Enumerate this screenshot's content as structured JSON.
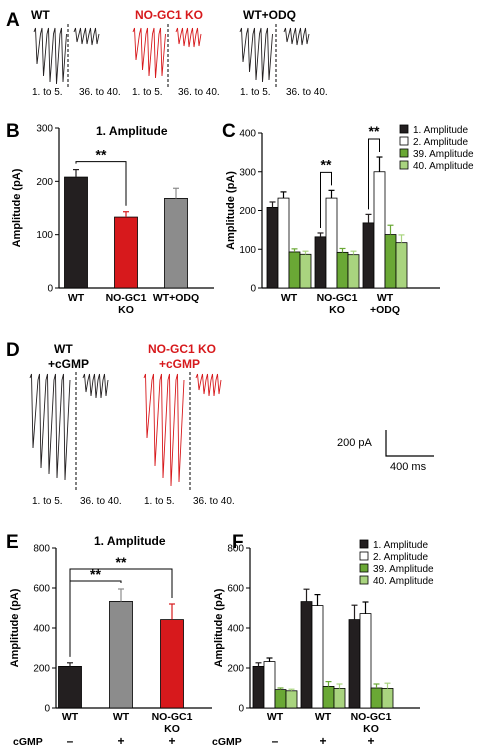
{
  "colors": {
    "wt": "#231f20",
    "ko": "#d7191c",
    "odq": "#8c8c8c",
    "amp2": "#ffffff",
    "amp39": "#6aa835",
    "amp40": "#a9d47f"
  },
  "panel_letters": [
    "A",
    "B",
    "C",
    "D",
    "E",
    "F"
  ],
  "traces": {
    "A": {
      "groups": [
        {
          "label": "WT",
          "color": "#231f20",
          "first": "1. to 5.",
          "last": "36. to 40."
        },
        {
          "label": "NO-GC1 KO",
          "color": "#d7191c",
          "first": "1. to 5.",
          "last": "36. to 40."
        },
        {
          "label": "WT+ODQ",
          "color": "#231f20",
          "first": "1. to 5.",
          "last": "36. to 40."
        }
      ]
    },
    "D": {
      "groups": [
        {
          "label_lines": [
            "WT",
            "+cGMP"
          ],
          "color": "#231f20",
          "first": "1. to 5.",
          "last": "36. to 40."
        },
        {
          "label_lines": [
            "NO-GC1 KO",
            "+cGMP"
          ],
          "color": "#d7191c",
          "first": "1. to 5.",
          "last": "36. to 40."
        }
      ],
      "scalebar": {
        "y_label": "200 pA",
        "x_label": "400 ms"
      }
    }
  },
  "chart_data": [
    {
      "panel": "B",
      "type": "bar",
      "title": "1. Amplitude",
      "ylabel": "Amplitude (pA)",
      "ylim": [
        0,
        300
      ],
      "yticks": [
        0,
        100,
        200,
        300
      ],
      "categories": [
        [
          "WT"
        ],
        [
          "NO-GC1",
          "KO"
        ],
        [
          "WT+ODQ"
        ]
      ],
      "values": [
        208,
        133,
        168
      ],
      "errors": [
        14,
        10,
        19
      ],
      "colors": [
        "#231f20",
        "#d7191c",
        "#8c8c8c"
      ],
      "significance": [
        {
          "from": 0,
          "to": 1,
          "label": "**"
        }
      ]
    },
    {
      "panel": "C",
      "type": "bar",
      "ylabel": "Amplitude (pA)",
      "ylim": [
        0,
        400
      ],
      "yticks": [
        0,
        100,
        200,
        300,
        400
      ],
      "categories": [
        [
          "WT"
        ],
        [
          "NO-GC1",
          "KO"
        ],
        [
          "WT",
          "+ODQ"
        ]
      ],
      "series": [
        {
          "name": "1. Amplitude",
          "color": "#231f20",
          "values": [
            208,
            132,
            168
          ],
          "errors": [
            14,
            10,
            22
          ]
        },
        {
          "name": "2. Amplitude",
          "color": "#ffffff",
          "values": [
            232,
            232,
            300
          ],
          "errors": [
            16,
            20,
            38
          ]
        },
        {
          "name": "39. Amplitude",
          "color": "#6aa835",
          "values": [
            93,
            92,
            138
          ],
          "errors": [
            8,
            10,
            24
          ]
        },
        {
          "name": "40. Amplitude",
          "color": "#a9d47f",
          "values": [
            87,
            86,
            117
          ],
          "errors": [
            8,
            9,
            20
          ]
        }
      ],
      "significance": [
        {
          "group": 1,
          "label": "**"
        },
        {
          "group": 2,
          "label": "**"
        }
      ],
      "legend": "top-right"
    },
    {
      "panel": "E",
      "type": "bar",
      "title": "1. Amplitude",
      "ylabel": "Amplitude (pA)",
      "ylim": [
        0,
        800
      ],
      "yticks": [
        0,
        200,
        400,
        600,
        800
      ],
      "categories": [
        [
          "WT"
        ],
        [
          "WT"
        ],
        [
          "NO-GC1",
          "KO"
        ]
      ],
      "cgmp_label": "cGMP",
      "cgmp": [
        "–",
        "+",
        "+"
      ],
      "values": [
        208,
        533,
        442
      ],
      "errors": [
        18,
        62,
        78
      ],
      "colors": [
        "#231f20",
        "#8c8c8c",
        "#d7191c"
      ],
      "significance": [
        {
          "from": 0,
          "to": 1,
          "label": "**"
        },
        {
          "from": 0,
          "to": 2,
          "label": "**"
        }
      ]
    },
    {
      "panel": "F",
      "type": "bar",
      "ylabel": "Amplitude (pA)",
      "ylim": [
        0,
        800
      ],
      "yticks": [
        0,
        200,
        400,
        600,
        800
      ],
      "categories": [
        [
          "WT"
        ],
        [
          "WT"
        ],
        [
          "NO-GC1",
          "KO"
        ]
      ],
      "cgmp_label": "cGMP",
      "cgmp": [
        "–",
        "+",
        "+"
      ],
      "series": [
        {
          "name": "1. Amplitude",
          "color": "#231f20",
          "values": [
            208,
            532,
            442
          ],
          "errors": [
            18,
            62,
            72
          ]
        },
        {
          "name": "2. Amplitude",
          "color": "#ffffff",
          "values": [
            232,
            512,
            472
          ],
          "errors": [
            18,
            55,
            58
          ]
        },
        {
          "name": "39. Amplitude",
          "color": "#6aa835",
          "values": [
            92,
            108,
            100
          ],
          "errors": [
            8,
            24,
            20
          ]
        },
        {
          "name": "40. Amplitude",
          "color": "#a9d47f",
          "values": [
            86,
            98,
            98
          ],
          "errors": [
            8,
            22,
            26
          ]
        }
      ],
      "legend": "top-right"
    }
  ]
}
